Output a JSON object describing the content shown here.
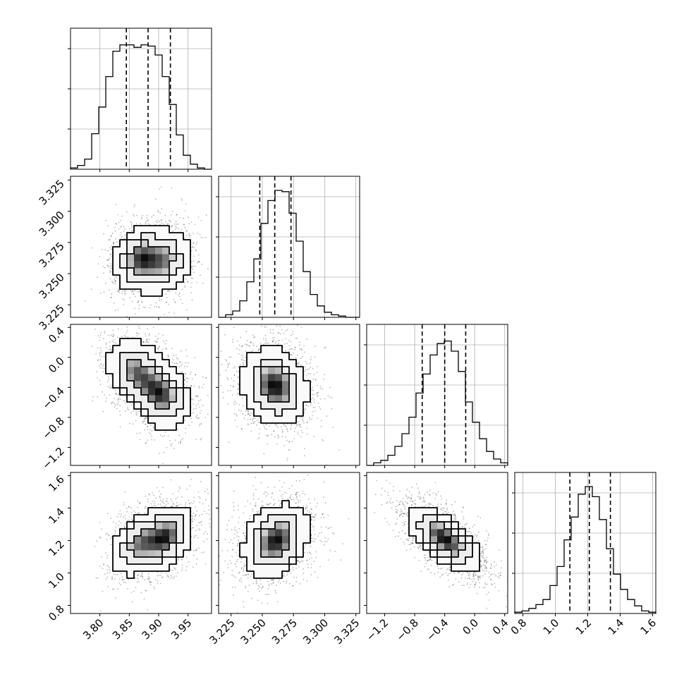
{
  "chart_data": {
    "type": "corner",
    "title": "",
    "dims": [
      {
        "label": "",
        "range": [
          3.75,
          3.99
        ],
        "ticks": [
          3.8,
          3.85,
          3.9,
          3.95
        ],
        "tick_labels": [
          "3.80",
          "3.85",
          "3.90",
          "3.95"
        ],
        "quantiles": [
          3.845,
          3.882,
          3.92
        ]
      },
      {
        "label": "",
        "range": [
          3.215,
          3.328
        ],
        "ticks": [
          3.225,
          3.25,
          3.275,
          3.3,
          3.325
        ],
        "tick_labels": [
          "3.225",
          "3.250",
          "3.275",
          "3.300",
          "3.325"
        ],
        "quantiles": [
          3.248,
          3.26,
          3.273
        ]
      },
      {
        "label": "",
        "range": [
          -1.44,
          0.44
        ],
        "ticks": [
          -1.2,
          -0.8,
          -0.4,
          0.0,
          0.4
        ],
        "tick_labels": [
          "−1.2",
          "−0.8",
          "−0.4",
          "0.0",
          "0.4"
        ],
        "quantiles": [
          -0.7,
          -0.4,
          -0.12
        ]
      },
      {
        "label": "",
        "range": [
          0.75,
          1.62
        ],
        "ticks": [
          0.8,
          1.0,
          1.2,
          1.4,
          1.6
        ],
        "tick_labels": [
          "0.8",
          "1.0",
          "1.2",
          "1.4",
          "1.6"
        ],
        "quantiles": [
          1.09,
          1.21,
          1.34
        ]
      }
    ],
    "histograms": [
      {
        "dim": 0,
        "bins": 20,
        "counts": [
          0.01,
          0.03,
          0.08,
          0.28,
          0.49,
          0.73,
          0.93,
          0.98,
          0.98,
          0.96,
          0.98,
          0.97,
          0.9,
          0.73,
          0.51,
          0.27,
          0.11,
          0.04,
          0.01,
          0.0
        ]
      },
      {
        "dim": 1,
        "bins": 20,
        "counts": [
          0.0,
          0.02,
          0.05,
          0.13,
          0.28,
          0.46,
          0.74,
          0.92,
          1.0,
          0.99,
          0.82,
          0.6,
          0.36,
          0.18,
          0.09,
          0.04,
          0.02,
          0.01,
          0.0,
          0.0
        ]
      },
      {
        "dim": 2,
        "bins": 20,
        "counts": [
          0.0,
          0.02,
          0.04,
          0.08,
          0.15,
          0.25,
          0.38,
          0.57,
          0.72,
          0.87,
          0.96,
          0.98,
          0.9,
          0.74,
          0.5,
          0.34,
          0.21,
          0.11,
          0.05,
          0.02
        ]
      },
      {
        "dim": 3,
        "bins": 20,
        "counts": [
          0.01,
          0.02,
          0.04,
          0.07,
          0.11,
          0.22,
          0.37,
          0.58,
          0.76,
          0.94,
          1.0,
          0.92,
          0.74,
          0.51,
          0.31,
          0.19,
          0.11,
          0.06,
          0.02,
          0.01
        ]
      }
    ],
    "pairs": [
      {
        "x": 0,
        "y": 1,
        "modes": [
          [
            3.868,
            3.262,
            1.0
          ],
          [
            3.912,
            3.26,
            0.8
          ]
        ],
        "sigma": [
          0.022,
          0.013
        ],
        "rho": 0.12
      },
      {
        "x": 0,
        "y": 2,
        "modes": [
          [
            3.86,
            -0.18,
            0.85
          ],
          [
            3.905,
            -0.5,
            1.0
          ]
        ],
        "sigma": [
          0.024,
          0.22
        ],
        "rho": -0.2
      },
      {
        "x": 1,
        "y": 2,
        "modes": [
          [
            3.26,
            -0.38,
            1.0
          ]
        ],
        "sigma": [
          0.013,
          0.25
        ],
        "rho": -0.15
      },
      {
        "x": 0,
        "y": 3,
        "modes": [
          [
            3.865,
            1.18,
            0.8
          ],
          [
            3.913,
            1.22,
            1.0
          ]
        ],
        "sigma": [
          0.023,
          0.1
        ],
        "rho": 0.35
      },
      {
        "x": 1,
        "y": 3,
        "modes": [
          [
            3.261,
            1.2,
            1.0
          ]
        ],
        "sigma": [
          0.013,
          0.11
        ],
        "rho": 0.25
      },
      {
        "x": 2,
        "y": 3,
        "modes": [
          [
            -0.4,
            1.21,
            1.0
          ]
        ],
        "sigma": [
          0.24,
          0.1
        ],
        "rho": -0.65
      }
    ],
    "grid": true,
    "colors": {
      "axes": "#000000",
      "grid": "#b0b0b0",
      "scatter": "#000000"
    }
  }
}
